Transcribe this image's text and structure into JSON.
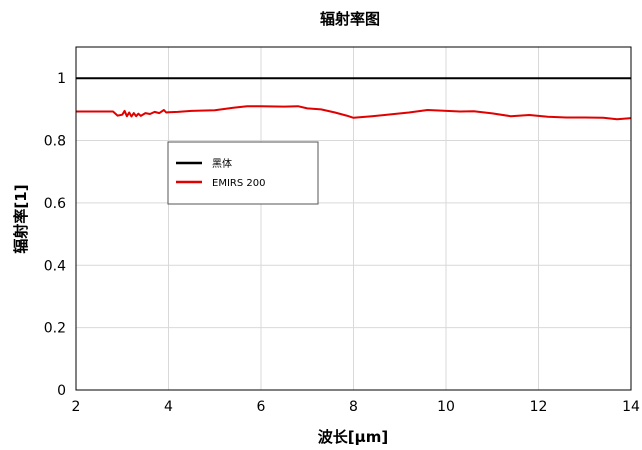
{
  "chart_data": {
    "type": "line",
    "title": "辐射率图",
    "xlabel": "波长[µm]",
    "ylabel": "辐射率[1]",
    "xlim": [
      2,
      14
    ],
    "ylim": [
      0,
      1.1
    ],
    "xticks": [
      2,
      4,
      6,
      8,
      10,
      12,
      14
    ],
    "xtick_labels": [
      "2",
      "4",
      "6",
      "8",
      "10",
      "12",
      "14"
    ],
    "yticks": [
      0,
      0.2,
      0.4,
      0.6,
      0.8,
      1
    ],
    "ytick_labels": [
      "0",
      "0.2",
      "0.4",
      "0.6",
      "0.8",
      "1"
    ],
    "grid": true,
    "legend_position": "upper-left inside plot",
    "series": [
      {
        "name": "黑体",
        "color": "#000000",
        "x": [
          2,
          14
        ],
        "y": [
          1.0,
          1.0
        ]
      },
      {
        "name": "EMIRS 200",
        "color": "#e00000",
        "x": [
          2.0,
          2.5,
          2.8,
          2.9,
          3.0,
          3.05,
          3.1,
          3.15,
          3.2,
          3.25,
          3.3,
          3.35,
          3.4,
          3.5,
          3.6,
          3.7,
          3.8,
          3.9,
          3.95,
          4.0,
          4.2,
          4.5,
          5.0,
          5.4,
          5.7,
          6.0,
          6.5,
          6.8,
          7.0,
          7.3,
          7.6,
          7.85,
          8.0,
          8.4,
          8.8,
          9.2,
          9.6,
          9.9,
          10.3,
          10.6,
          11.0,
          11.4,
          11.8,
          12.2,
          12.6,
          13.0,
          13.4,
          13.7,
          14.0
        ],
        "y": [
          0.893,
          0.893,
          0.893,
          0.88,
          0.883,
          0.895,
          0.878,
          0.89,
          0.877,
          0.888,
          0.878,
          0.886,
          0.879,
          0.888,
          0.885,
          0.892,
          0.888,
          0.898,
          0.89,
          0.891,
          0.892,
          0.895,
          0.897,
          0.905,
          0.91,
          0.91,
          0.909,
          0.91,
          0.903,
          0.9,
          0.89,
          0.88,
          0.873,
          0.878,
          0.884,
          0.89,
          0.898,
          0.896,
          0.893,
          0.894,
          0.887,
          0.878,
          0.882,
          0.876,
          0.874,
          0.874,
          0.873,
          0.868,
          0.872
        ]
      }
    ]
  }
}
